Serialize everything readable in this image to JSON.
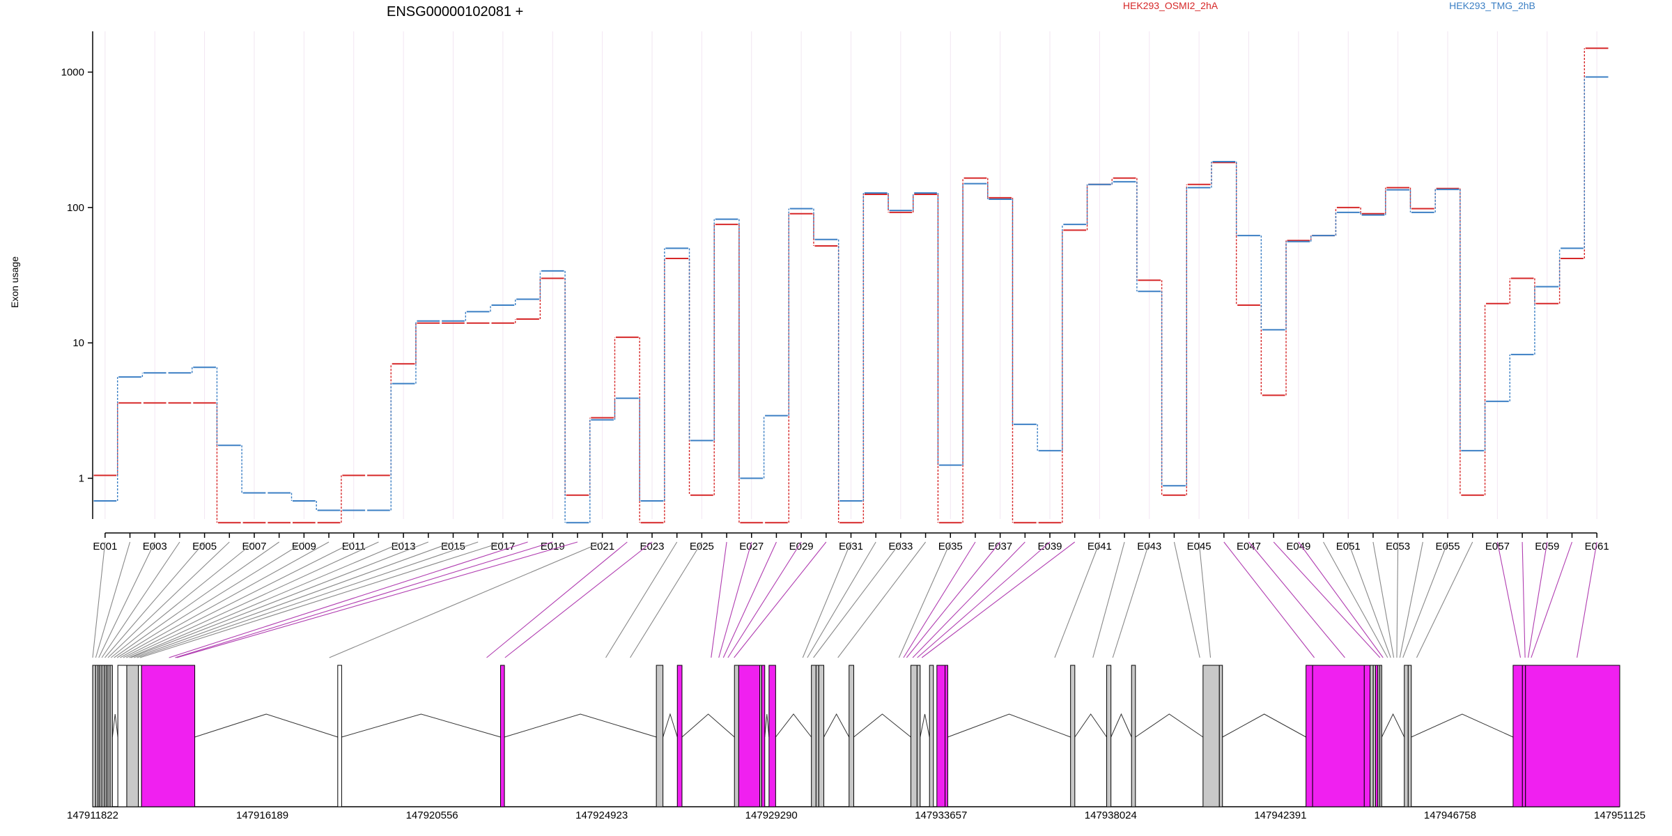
{
  "chart_data": {
    "type": "line",
    "title": "ENSG00000102081 +",
    "ylabel": "Exon usage",
    "y_scale": "log",
    "ylim": [
      0.5,
      2000
    ],
    "y_ticks": [
      {
        "label": "1",
        "value": 1
      },
      {
        "label": "10",
        "value": 10
      },
      {
        "label": "100",
        "value": 100
      },
      {
        "label": "1000",
        "value": 1000
      }
    ],
    "series": [
      {
        "name": "HEK293_OSMI2_2hA",
        "color": "#d62728",
        "values": [
          1.05,
          3.6,
          3.6,
          3.6,
          3.6,
          0.47,
          0.47,
          0.47,
          0.47,
          0.47,
          1.05,
          1.05,
          7,
          14,
          14,
          14,
          14,
          15,
          30,
          0.75,
          2.8,
          11,
          0.47,
          42,
          0.75,
          75,
          0.47,
          0.47,
          90,
          52,
          0.47,
          125,
          92,
          125,
          0.47,
          165,
          118,
          0.47,
          0.47,
          68,
          148,
          165,
          29,
          0.75,
          148,
          215,
          19,
          4.1,
          57,
          62,
          100,
          90,
          140,
          98,
          138,
          0.75,
          19.5,
          30,
          19.5,
          42,
          1500
        ]
      },
      {
        "name": "HEK293_TMG_2hB",
        "color": "#3b7fc4",
        "values": [
          0.68,
          5.6,
          6,
          6,
          6.6,
          1.75,
          0.78,
          0.78,
          0.68,
          0.58,
          0.58,
          0.58,
          5,
          14.5,
          14.5,
          17,
          19,
          21,
          34,
          0.47,
          2.7,
          3.9,
          0.68,
          50,
          1.9,
          82,
          1,
          2.9,
          98,
          58,
          0.68,
          128,
          95,
          128,
          1.25,
          150,
          115,
          2.5,
          1.6,
          75,
          148,
          155,
          24,
          0.88,
          140,
          218,
          62,
          12.5,
          56,
          62,
          92,
          88,
          135,
          92,
          136,
          1.6,
          3.7,
          8.2,
          26,
          50,
          920
        ]
      }
    ],
    "x_labels": [
      "E001",
      "E003",
      "E005",
      "E007",
      "E009",
      "E011",
      "E013",
      "E015",
      "E017",
      "E019",
      "E021",
      "E023",
      "E025",
      "E027",
      "E029",
      "E031",
      "E033",
      "E035",
      "E037",
      "E039",
      "E041",
      "E043",
      "E045",
      "E047",
      "E049",
      "E051",
      "E053",
      "E055",
      "E057",
      "E059",
      "E061"
    ],
    "genomic_labels": [
      "147911822",
      "147916189",
      "147920556",
      "147924923",
      "147929290",
      "147933657",
      "147938024",
      "147942391",
      "147946758",
      "147951125"
    ],
    "genomic_start": 147911822,
    "genomic_end": 147951125,
    "exon_regions": [
      {
        "start": 147911822,
        "end": 147911900,
        "color": "#c8c8c8"
      },
      {
        "start": 147911900,
        "end": 147911960,
        "color": "#c8c8c8"
      },
      {
        "start": 147911960,
        "end": 147912005,
        "color": "#c8c8c8"
      },
      {
        "start": 147912005,
        "end": 147912060,
        "color": "#c8c8c8"
      },
      {
        "start": 147912060,
        "end": 147912120,
        "color": "#c8c8c8"
      },
      {
        "start": 147912120,
        "end": 147912170,
        "color": "#c8c8c8"
      },
      {
        "start": 147912170,
        "end": 147912215,
        "color": "#c8c8c8"
      },
      {
        "start": 147912215,
        "end": 147912270,
        "color": "#c8c8c8"
      },
      {
        "start": 147912270,
        "end": 147912330,
        "color": "#c8c8c8"
      },
      {
        "start": 147912470,
        "end": 147912700,
        "color": "#ffffff"
      },
      {
        "start": 147912700,
        "end": 147913000,
        "color": "#c8c8c8"
      },
      {
        "start": 147913000,
        "end": 147913080,
        "color": "#ffffff"
      },
      {
        "start": 147913080,
        "end": 147914450,
        "color": "#f020f0"
      },
      {
        "start": 147918130,
        "end": 147918230,
        "color": "#ffffff"
      },
      {
        "start": 147922320,
        "end": 147922420,
        "color": "#f020f0"
      },
      {
        "start": 147926330,
        "end": 147926500,
        "color": "#c8c8c8"
      },
      {
        "start": 147926870,
        "end": 147926990,
        "color": "#f020f0"
      },
      {
        "start": 147928340,
        "end": 147928450,
        "color": "#c8c8c8"
      },
      {
        "start": 147928450,
        "end": 147928990,
        "color": "#f020f0"
      },
      {
        "start": 147928990,
        "end": 147929040,
        "color": "#c8c8c8"
      },
      {
        "start": 147929040,
        "end": 147929120,
        "color": "#f020f0"
      },
      {
        "start": 147929230,
        "end": 147929400,
        "color": "#f020f0"
      },
      {
        "start": 147930320,
        "end": 147930440,
        "color": "#c8c8c8"
      },
      {
        "start": 147930440,
        "end": 147930510,
        "color": "#c8c8c8"
      },
      {
        "start": 147930510,
        "end": 147930640,
        "color": "#c8c8c8"
      },
      {
        "start": 147931290,
        "end": 147931410,
        "color": "#c8c8c8"
      },
      {
        "start": 147932880,
        "end": 147933040,
        "color": "#c8c8c8"
      },
      {
        "start": 147933040,
        "end": 147933120,
        "color": "#c8c8c8"
      },
      {
        "start": 147933360,
        "end": 147933460,
        "color": "#c8c8c8"
      },
      {
        "start": 147933550,
        "end": 147933760,
        "color": "#f020f0"
      },
      {
        "start": 147933760,
        "end": 147933830,
        "color": "#f020f0"
      },
      {
        "start": 147936990,
        "end": 147937100,
        "color": "#c8c8c8"
      },
      {
        "start": 147937920,
        "end": 147938030,
        "color": "#c8c8c8"
      },
      {
        "start": 147938560,
        "end": 147938660,
        "color": "#c8c8c8"
      },
      {
        "start": 147940400,
        "end": 147940820,
        "color": "#c8c8c8"
      },
      {
        "start": 147940820,
        "end": 147940900,
        "color": "#c8c8c8"
      },
      {
        "start": 147943050,
        "end": 147943220,
        "color": "#f020f0"
      },
      {
        "start": 147943220,
        "end": 147944550,
        "color": "#f020f0"
      },
      {
        "start": 147944550,
        "end": 147944700,
        "color": "#f020f0"
      },
      {
        "start": 147944700,
        "end": 147944780,
        "color": "#c8c8c8"
      },
      {
        "start": 147944780,
        "end": 147944840,
        "color": "#c8c8c8"
      },
      {
        "start": 147944840,
        "end": 147944900,
        "color": "#f020f0"
      },
      {
        "start": 147944900,
        "end": 147944950,
        "color": "#c8c8c8"
      },
      {
        "start": 147944950,
        "end": 147945000,
        "color": "#c8c8c8"
      },
      {
        "start": 147945580,
        "end": 147945680,
        "color": "#c8c8c8"
      },
      {
        "start": 147945680,
        "end": 147945760,
        "color": "#c8c8c8"
      },
      {
        "start": 147948380,
        "end": 147948620,
        "color": "#f020f0"
      },
      {
        "start": 147948620,
        "end": 147948700,
        "color": "#f020f0"
      },
      {
        "start": 147948700,
        "end": 147951125,
        "color": "#f020f0"
      }
    ],
    "exon_bin_colors": [
      "#888888",
      "#888888",
      "#888888",
      "#888888",
      "#888888",
      "#888888",
      "#888888",
      "#888888",
      "#888888",
      "#888888",
      "#888888",
      "#888888",
      "#888888",
      "#888888",
      "#888888",
      "#888888",
      "#888888",
      "#b03cb0",
      "#b03cb0",
      "#b03cb0",
      "#888888",
      "#b03cb0",
      "#b03cb0",
      "#888888",
      "#888888",
      "#b03cb0",
      "#b03cb0",
      "#b03cb0",
      "#b03cb0",
      "#b03cb0",
      "#888888",
      "#888888",
      "#888888",
      "#888888",
      "#888888",
      "#b03cb0",
      "#b03cb0",
      "#b03cb0",
      "#b03cb0",
      "#b03cb0",
      "#888888",
      "#888888",
      "#888888",
      "#888888",
      "#888888",
      "#b03cb0",
      "#b03cb0",
      "#b03cb0",
      "#b03cb0",
      "#888888",
      "#888888",
      "#888888",
      "#888888",
      "#888888",
      "#888888",
      "#888888",
      "#b03cb0",
      "#b03cb0",
      "#b03cb0",
      "#b03cb0",
      "#b03cb0"
    ],
    "grid": true,
    "legend_position": "top"
  }
}
